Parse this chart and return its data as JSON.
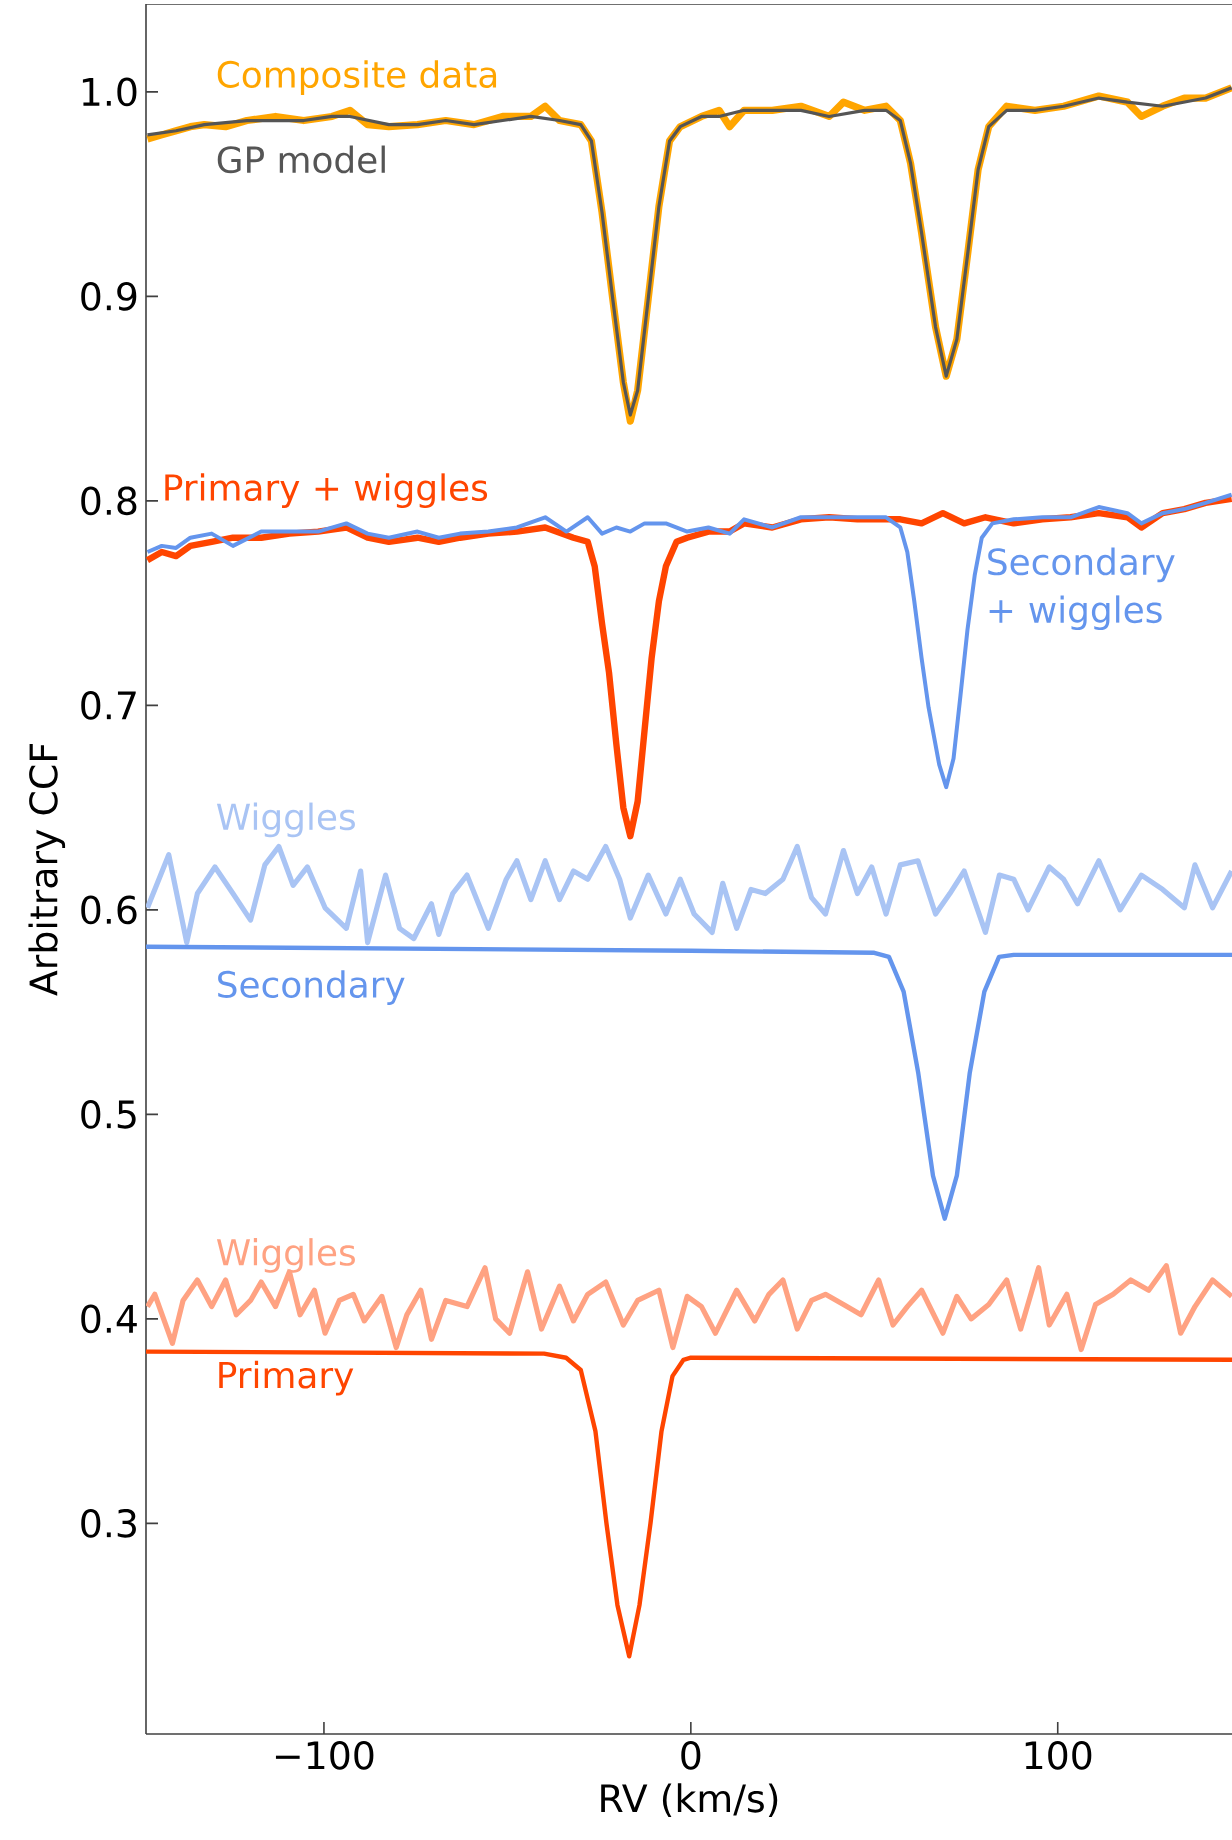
{
  "chart_data": {
    "type": "line",
    "xlabel": "RV (km/s)",
    "ylabel": "Arbitrary CCF",
    "xlim": [
      -148.5,
      147.5
    ],
    "ylim": [
      0.197,
      1.043
    ],
    "xticks": [
      {
        "value": -100,
        "label": "−100"
      },
      {
        "value": 0,
        "label": "0"
      },
      {
        "value": 100,
        "label": "100"
      }
    ],
    "yticks": [
      {
        "value": 0.3,
        "label": "0.3"
      },
      {
        "value": 0.4,
        "label": "0.4"
      },
      {
        "value": 0.5,
        "label": "0.5"
      },
      {
        "value": 0.6,
        "label": "0.6"
      },
      {
        "value": 0.7,
        "label": "0.7"
      },
      {
        "value": 0.8,
        "label": "0.8"
      },
      {
        "value": 0.9,
        "label": "0.9"
      },
      {
        "value": 1.0,
        "label": "1.0"
      }
    ],
    "series": [
      {
        "name": "Composite data",
        "color": "#ffa500",
        "x": [
          -148.1,
          -144.2,
          -140.3,
          -136.4,
          -132.6,
          -126.8,
          -121.0,
          -113.2,
          -105.5,
          -97.8,
          -92.9,
          -88.1,
          -82.3,
          -74.5,
          -66.8,
          -59.1,
          -51.3,
          -43.6,
          -39.7,
          -35.8,
          -30.0,
          -27.1,
          -24.2,
          -21.3,
          -18.4,
          -16.5,
          -14.5,
          -11.6,
          -8.7,
          -5.8,
          -2.9,
          2.9,
          7.7,
          10.6,
          14.5,
          22.2,
          30.0,
          37.7,
          41.6,
          47.4,
          53.2,
          57.1,
          59.9,
          62.9,
          66.7,
          69.6,
          72.5,
          75.4,
          78.3,
          81.2,
          86.1,
          93.8,
          101.6,
          111.2,
          119.0,
          122.8,
          128.6,
          134.5,
          140.3,
          147.4
        ],
        "values": [
          0.977,
          0.979,
          0.981,
          0.983,
          0.984,
          0.983,
          0.986,
          0.988,
          0.986,
          0.988,
          0.991,
          0.984,
          0.983,
          0.984,
          0.986,
          0.984,
          0.988,
          0.988,
          0.993,
          0.986,
          0.984,
          0.976,
          0.941,
          0.899,
          0.858,
          0.839,
          0.854,
          0.899,
          0.944,
          0.976,
          0.983,
          0.988,
          0.991,
          0.983,
          0.991,
          0.991,
          0.993,
          0.988,
          0.995,
          0.991,
          0.993,
          0.986,
          0.965,
          0.931,
          0.885,
          0.861,
          0.879,
          0.92,
          0.962,
          0.983,
          0.993,
          0.991,
          0.993,
          0.998,
          0.995,
          0.988,
          0.993,
          0.997,
          0.997,
          1.002
        ]
      },
      {
        "name": "GP model",
        "color": "#555555",
        "x": [
          -148.1,
          -140.3,
          -132.6,
          -121.0,
          -113.2,
          -105.5,
          -97.8,
          -92.9,
          -82.3,
          -74.5,
          -66.8,
          -59.1,
          -51.3,
          -43.6,
          -35.8,
          -30.0,
          -27.1,
          -24.2,
          -21.3,
          -18.4,
          -16.5,
          -14.5,
          -11.6,
          -8.7,
          -5.8,
          -2.9,
          2.9,
          7.7,
          14.5,
          22.2,
          30.0,
          37.7,
          47.4,
          53.2,
          57.1,
          59.9,
          62.9,
          66.7,
          69.6,
          72.5,
          75.4,
          78.3,
          81.2,
          86.1,
          93.8,
          101.6,
          111.2,
          119.0,
          128.6,
          140.3,
          147.4
        ],
        "values": [
          0.979,
          0.981,
          0.984,
          0.986,
          0.986,
          0.986,
          0.988,
          0.988,
          0.984,
          0.984,
          0.986,
          0.984,
          0.986,
          0.988,
          0.986,
          0.984,
          0.976,
          0.941,
          0.899,
          0.858,
          0.842,
          0.854,
          0.899,
          0.944,
          0.976,
          0.983,
          0.988,
          0.988,
          0.991,
          0.991,
          0.991,
          0.988,
          0.991,
          0.991,
          0.986,
          0.965,
          0.931,
          0.885,
          0.861,
          0.879,
          0.92,
          0.962,
          0.983,
          0.991,
          0.991,
          0.993,
          0.997,
          0.995,
          0.993,
          0.997,
          1.002
        ]
      },
      {
        "name": "Primary + wiggles",
        "color": "#ff4500",
        "x": [
          -148.1,
          -144.2,
          -140.3,
          -136.4,
          -130.6,
          -124.8,
          -117.1,
          -109.4,
          -101.6,
          -93.9,
          -88.1,
          -82.3,
          -74.5,
          -68.7,
          -62.9,
          -55.2,
          -47.4,
          -39.7,
          -32.0,
          -28.1,
          -26.2,
          -24.2,
          -22.3,
          -20.3,
          -18.4,
          -16.5,
          -14.5,
          -12.6,
          -10.7,
          -8.7,
          -6.8,
          -3.9,
          -1.0,
          4.8,
          10.6,
          14.5,
          22.2,
          30.0,
          37.7,
          45.4,
          53.2,
          57.1,
          62.9,
          68.7,
          74.5,
          80.3,
          88.0,
          95.8,
          103.5,
          111.2,
          119.0,
          122.8,
          128.6,
          134.5,
          140.3,
          147.4
        ],
        "values": [
          0.771,
          0.775,
          0.773,
          0.778,
          0.78,
          0.782,
          0.782,
          0.784,
          0.785,
          0.787,
          0.782,
          0.78,
          0.782,
          0.78,
          0.782,
          0.784,
          0.785,
          0.787,
          0.782,
          0.78,
          0.768,
          0.74,
          0.716,
          0.681,
          0.65,
          0.636,
          0.653,
          0.688,
          0.723,
          0.751,
          0.768,
          0.78,
          0.782,
          0.785,
          0.785,
          0.789,
          0.787,
          0.791,
          0.792,
          0.791,
          0.791,
          0.791,
          0.789,
          0.794,
          0.789,
          0.792,
          0.789,
          0.791,
          0.792,
          0.794,
          0.792,
          0.787,
          0.794,
          0.796,
          0.799,
          0.801
        ]
      },
      {
        "name": "Secondary + wiggles",
        "color": "#6495ed",
        "x": [
          -148.1,
          -144.2,
          -140.3,
          -136.4,
          -130.6,
          -124.8,
          -117.1,
          -109.4,
          -101.6,
          -93.9,
          -88.1,
          -82.3,
          -74.5,
          -68.7,
          -62.9,
          -55.2,
          -47.4,
          -39.7,
          -33.9,
          -28.1,
          -24.2,
          -20.3,
          -16.5,
          -12.6,
          -6.8,
          -1.0,
          4.8,
          10.6,
          14.5,
          22.2,
          30.0,
          37.7,
          45.4,
          53.2,
          57.1,
          59.0,
          60.9,
          62.9,
          64.8,
          67.7,
          69.6,
          71.6,
          73.5,
          75.4,
          77.4,
          79.3,
          82.2,
          88.0,
          95.8,
          103.5,
          111.2,
          119.0,
          122.8,
          128.6,
          134.5,
          140.3,
          147.4
        ],
        "values": [
          0.775,
          0.778,
          0.777,
          0.782,
          0.784,
          0.778,
          0.785,
          0.785,
          0.785,
          0.789,
          0.784,
          0.782,
          0.785,
          0.782,
          0.784,
          0.785,
          0.787,
          0.792,
          0.785,
          0.792,
          0.784,
          0.787,
          0.785,
          0.789,
          0.789,
          0.785,
          0.787,
          0.784,
          0.791,
          0.787,
          0.792,
          0.792,
          0.792,
          0.792,
          0.787,
          0.775,
          0.751,
          0.723,
          0.699,
          0.671,
          0.66,
          0.674,
          0.705,
          0.737,
          0.764,
          0.782,
          0.789,
          0.791,
          0.792,
          0.792,
          0.797,
          0.794,
          0.789,
          0.794,
          0.796,
          0.799,
          0.803
        ]
      },
      {
        "name": "Wiggles",
        "color": "#a9c4f4",
        "x": [
          -148.1,
          -142.3,
          -137.4,
          -134.5,
          -129.7,
          -124.8,
          -120.0,
          -116.1,
          -112.3,
          -108.4,
          -104.5,
          -99.7,
          -93.9,
          -90.0,
          -88.1,
          -83.2,
          -79.4,
          -75.5,
          -70.7,
          -68.7,
          -64.9,
          -61.0,
          -55.2,
          -50.3,
          -47.4,
          -43.6,
          -39.7,
          -35.8,
          -32.0,
          -28.1,
          -23.2,
          -19.4,
          -16.5,
          -11.6,
          -6.8,
          -2.9,
          0.9,
          5.8,
          8.7,
          12.5,
          16.4,
          20.3,
          25.1,
          29.0,
          32.9,
          36.7,
          41.6,
          45.4,
          49.3,
          53.2,
          57.1,
          61.9,
          66.7,
          70.6,
          74.5,
          80.3,
          84.1,
          88.0,
          91.9,
          97.7,
          101.6,
          105.4,
          111.2,
          117.0,
          122.8,
          128.6,
          134.5,
          137.4,
          142.2,
          147.4
        ],
        "values": [
          0.601,
          0.627,
          0.584,
          0.608,
          0.621,
          0.608,
          0.595,
          0.622,
          0.631,
          0.612,
          0.621,
          0.601,
          0.591,
          0.619,
          0.584,
          0.617,
          0.591,
          0.586,
          0.603,
          0.588,
          0.608,
          0.617,
          0.591,
          0.615,
          0.624,
          0.605,
          0.624,
          0.605,
          0.619,
          0.615,
          0.631,
          0.615,
          0.596,
          0.617,
          0.598,
          0.615,
          0.598,
          0.589,
          0.613,
          0.591,
          0.61,
          0.608,
          0.615,
          0.631,
          0.606,
          0.598,
          0.629,
          0.608,
          0.621,
          0.598,
          0.622,
          0.624,
          0.598,
          0.608,
          0.619,
          0.589,
          0.617,
          0.615,
          0.6,
          0.621,
          0.615,
          0.603,
          0.624,
          0.6,
          0.617,
          0.61,
          0.601,
          0.622,
          0.601,
          0.619
        ]
      },
      {
        "name": "Secondary",
        "color": "#6495ed",
        "x": [
          -148.5,
          0,
          50,
          54,
          58,
          62,
          66,
          69.2,
          72.5,
          76,
          80,
          84,
          88,
          147.5
        ],
        "values": [
          0.582,
          0.58,
          0.579,
          0.577,
          0.56,
          0.52,
          0.47,
          0.449,
          0.47,
          0.52,
          0.56,
          0.577,
          0.578,
          0.578
        ]
      },
      {
        "name": "Wiggles",
        "color": "#ffa282",
        "x": [
          -148.1,
          -146.1,
          -141.3,
          -138.4,
          -134.5,
          -130.6,
          -126.8,
          -123.9,
          -120.0,
          -117.1,
          -113.2,
          -109.4,
          -106.5,
          -102.6,
          -99.7,
          -95.8,
          -92.0,
          -89.0,
          -84.2,
          -80.3,
          -77.4,
          -73.6,
          -70.7,
          -66.8,
          -61.0,
          -56.1,
          -53.2,
          -49.4,
          -44.5,
          -40.7,
          -35.8,
          -32.0,
          -28.1,
          -23.2,
          -18.4,
          -14.5,
          -8.7,
          -4.9,
          -1.0,
          2.9,
          6.7,
          12.5,
          17.4,
          21.3,
          25.1,
          29.0,
          32.9,
          36.7,
          41.6,
          46.4,
          51.2,
          55.1,
          59.0,
          62.9,
          68.7,
          72.5,
          76.4,
          81.2,
          86.1,
          89.9,
          94.8,
          97.7,
          102.5,
          106.4,
          110.3,
          115.1,
          119.9,
          124.8,
          129.6,
          133.5,
          137.4,
          142.2,
          147.4
        ],
        "values": [
          0.406,
          0.412,
          0.388,
          0.409,
          0.419,
          0.406,
          0.419,
          0.402,
          0.409,
          0.418,
          0.406,
          0.423,
          0.402,
          0.414,
          0.393,
          0.409,
          0.412,
          0.399,
          0.411,
          0.386,
          0.402,
          0.414,
          0.39,
          0.409,
          0.406,
          0.425,
          0.4,
          0.393,
          0.423,
          0.395,
          0.416,
          0.399,
          0.412,
          0.418,
          0.397,
          0.409,
          0.414,
          0.386,
          0.411,
          0.406,
          0.393,
          0.414,
          0.399,
          0.412,
          0.419,
          0.395,
          0.409,
          0.412,
          0.407,
          0.402,
          0.419,
          0.397,
          0.406,
          0.414,
          0.393,
          0.411,
          0.4,
          0.407,
          0.419,
          0.395,
          0.425,
          0.397,
          0.412,
          0.385,
          0.407,
          0.412,
          0.419,
          0.414,
          0.426,
          0.393,
          0.406,
          0.419,
          0.411
        ]
      },
      {
        "name": "Primary",
        "color": "#ff4500",
        "x": [
          -148.5,
          -40,
          -34,
          -30,
          -26,
          -23,
          -20,
          -16.8,
          -14,
          -11,
          -8,
          -5,
          -2,
          0,
          147.5
        ],
        "values": [
          0.384,
          0.383,
          0.381,
          0.375,
          0.345,
          0.3,
          0.26,
          0.235,
          0.26,
          0.3,
          0.345,
          0.372,
          0.38,
          0.381,
          0.38
        ]
      }
    ]
  }
}
